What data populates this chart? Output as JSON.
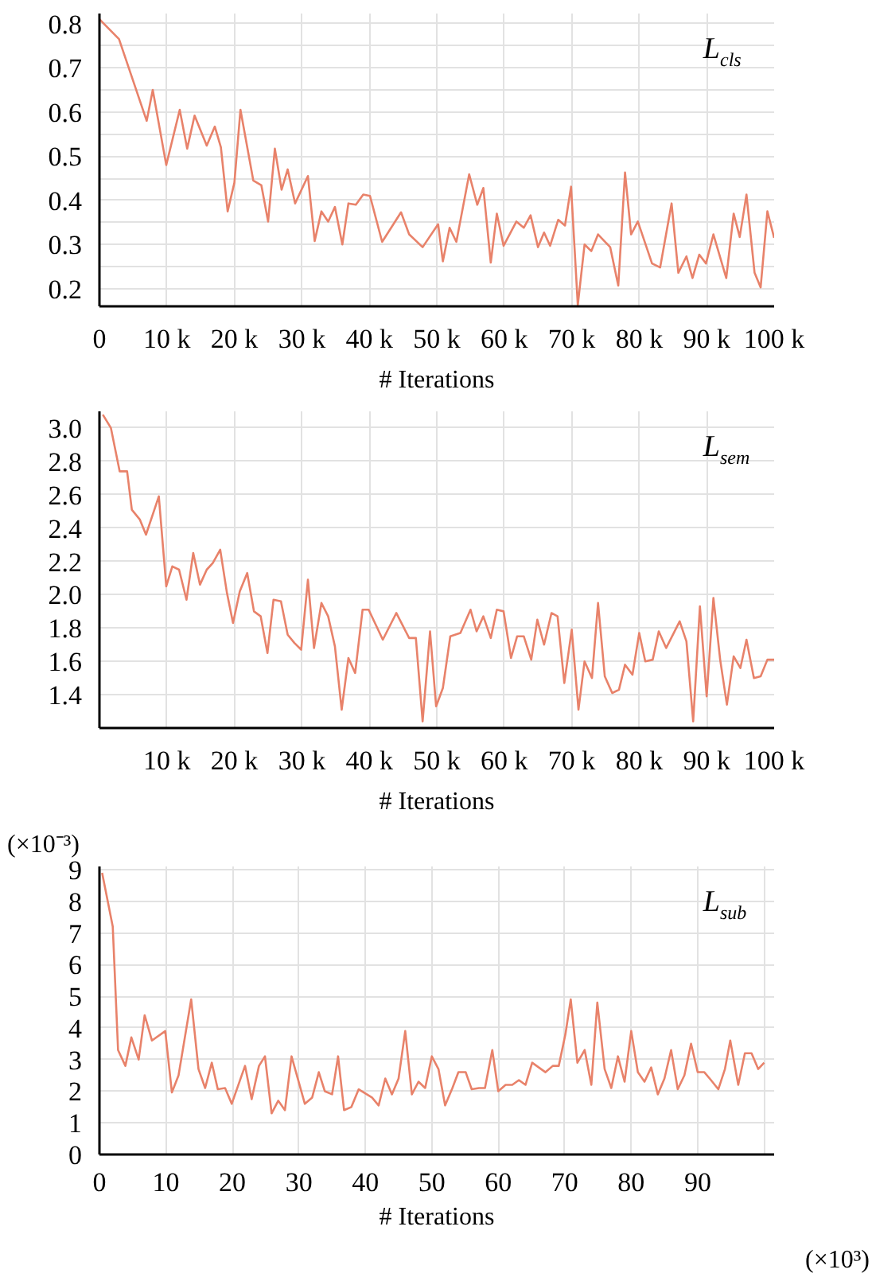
{
  "chart_data": [
    {
      "type": "line",
      "title": "L$_{cls}$",
      "xlabel": "# Iterations",
      "grid": true,
      "xlim": [
        0,
        100
      ],
      "ylim": [
        0.16,
        0.823
      ],
      "xticks": [
        0,
        {
          "value": 10,
          "label": "10 k"
        },
        {
          "value": 20,
          "label": "20 k"
        },
        {
          "value": 30,
          "label": "30 k"
        },
        {
          "value": 40,
          "label": "40 k"
        },
        {
          "value": 50,
          "label": "50 k"
        },
        {
          "value": 60,
          "label": "60 k"
        },
        {
          "value": 70,
          "label": "70 k"
        },
        {
          "value": 80,
          "label": "80 k"
        },
        {
          "value": 90,
          "label": "90 k"
        },
        {
          "value": 100,
          "label": "100 k"
        }
      ],
      "yticks": [
        0.2,
        {
          "value": 0.25,
          "label": null
        },
        0.3,
        {
          "value": 0.35,
          "label": null
        },
        0.4,
        {
          "value": 0.45,
          "label": null
        },
        0.5,
        {
          "value": 0.55,
          "label": null
        },
        0.6,
        {
          "value": 0.65,
          "label": null
        },
        0.7,
        {
          "value": 0.75,
          "label": null
        },
        0.8
      ],
      "series": [
        {
          "color": "#e8826a",
          "x": [
            0,
            2.9,
            7.0,
            7.9,
            9.9,
            11.9,
            13.0,
            14.1,
            15.9,
            17.1,
            18.0,
            19.0,
            20.0,
            20.9,
            22.8,
            24.0,
            25.0,
            26.0,
            27.0,
            27.9,
            29.0,
            30.9,
            31.9,
            32.9,
            33.9,
            34.9,
            36.0,
            36.9,
            38.0,
            39.1,
            40.1,
            41.9,
            44.7,
            45.9,
            47.9,
            50.2,
            50.9,
            51.9,
            52.9,
            54.8,
            56.0,
            56.9,
            58.0,
            58.9,
            59.9,
            61.8,
            62.9,
            63.9,
            65.0,
            65.9,
            66.8,
            68.0,
            69.0,
            69.9,
            70.9,
            71.9,
            72.9,
            73.9,
            75.7,
            76.9,
            77.9,
            78.8,
            79.8,
            81.9,
            83.1,
            84.8,
            85.8,
            87.0,
            87.9,
            88.9,
            89.9,
            91.0,
            92.9,
            94.0,
            94.9,
            95.9,
            97.1,
            98.0,
            99.0,
            100.0
          ],
          "values": [
            0.81,
            0.765,
            0.58,
            0.65,
            0.48,
            0.605,
            0.517,
            0.592,
            0.524,
            0.567,
            0.52,
            0.375,
            0.44,
            0.605,
            0.445,
            0.434,
            0.352,
            0.517,
            0.424,
            0.47,
            0.393,
            0.455,
            0.308,
            0.375,
            0.352,
            0.385,
            0.3,
            0.393,
            0.39,
            0.413,
            0.41,
            0.306,
            0.373,
            0.323,
            0.294,
            0.346,
            0.262,
            0.338,
            0.306,
            0.459,
            0.39,
            0.428,
            0.259,
            0.37,
            0.297,
            0.352,
            0.338,
            0.366,
            0.294,
            0.327,
            0.297,
            0.356,
            0.343,
            0.431,
            0.163,
            0.3,
            0.285,
            0.323,
            0.294,
            0.207,
            0.463,
            0.323,
            0.352,
            0.257,
            0.248,
            0.393,
            0.236,
            0.273,
            0.224,
            0.277,
            0.257,
            0.323,
            0.224,
            0.37,
            0.317,
            0.413,
            0.236,
            0.203,
            0.375,
            0.315
          ]
        }
      ]
    },
    {
      "type": "line",
      "title": "L$_{sem}$",
      "xlabel": "# Iterations",
      "grid": true,
      "xlim": [
        0,
        100
      ],
      "ylim": [
        1.2,
        3.1
      ],
      "xticks": [
        {
          "value": 10,
          "label": "10 k"
        },
        {
          "value": 20,
          "label": "20 k"
        },
        {
          "value": 30,
          "label": "30 k"
        },
        {
          "value": 40,
          "label": "40 k"
        },
        {
          "value": 50,
          "label": "50 k"
        },
        {
          "value": 60,
          "label": "60 k"
        },
        {
          "value": 70,
          "label": "70 k"
        },
        {
          "value": 80,
          "label": "80 k"
        },
        {
          "value": 90,
          "label": "90 k"
        },
        {
          "value": 100,
          "label": "100 k"
        }
      ],
      "yticks": [
        {
          "value": 1.4,
          "label": "1.4"
        },
        {
          "value": 1.6,
          "label": "1.6"
        },
        {
          "value": 1.8,
          "label": "1.8"
        },
        {
          "value": 2.0,
          "label": "2.0"
        },
        {
          "value": 2.2,
          "label": "2.2"
        },
        {
          "value": 2.4,
          "label": "2.4"
        },
        {
          "value": 2.6,
          "label": "2.6"
        },
        {
          "value": 2.8,
          "label": "2.8"
        },
        {
          "value": 3.0,
          "label": "3.0"
        }
      ],
      "series": [
        {
          "color": "#e8826a",
          "x": [
            0.5,
            1.7,
            3.0,
            4.1,
            4.8,
            6.0,
            6.9,
            8.8,
            9.9,
            10.8,
            11.8,
            12.9,
            13.9,
            14.9,
            15.9,
            16.8,
            17.9,
            18.9,
            19.8,
            20.8,
            21.9,
            22.9,
            23.9,
            24.9,
            25.8,
            26.9,
            27.9,
            28.9,
            29.9,
            30.9,
            31.8,
            32.9,
            33.9,
            34.9,
            35.9,
            36.9,
            37.9,
            39.0,
            39.9,
            42.0,
            44.0,
            45.9,
            46.9,
            47.9,
            49.0,
            49.9,
            50.9,
            52.0,
            53.5,
            55.0,
            55.9,
            56.9,
            58.0,
            58.9,
            59.9,
            61.0,
            61.9,
            62.9,
            64.0,
            64.9,
            65.9,
            67.0,
            67.9,
            68.9,
            70.0,
            71.0,
            71.9,
            73.0,
            73.9,
            74.9,
            76.0,
            77.0,
            77.9,
            79.0,
            80.0,
            80.9,
            82.0,
            82.9,
            84.0,
            86.0,
            87.0,
            88.0,
            89.0,
            90.0,
            91.0,
            92.0,
            93.0,
            94.0,
            95.0,
            95.9,
            97.0,
            98.0,
            99.0,
            100.0
          ],
          "values": [
            3.08,
            3.0,
            2.74,
            2.74,
            2.51,
            2.45,
            2.36,
            2.59,
            2.05,
            2.17,
            2.15,
            1.97,
            2.25,
            2.06,
            2.15,
            2.19,
            2.27,
            2.01,
            1.83,
            2.02,
            2.13,
            1.9,
            1.87,
            1.65,
            1.97,
            1.96,
            1.76,
            1.71,
            1.67,
            2.09,
            1.68,
            1.95,
            1.87,
            1.69,
            1.31,
            1.62,
            1.53,
            1.91,
            1.91,
            1.73,
            1.89,
            1.74,
            1.74,
            1.24,
            1.78,
            1.33,
            1.44,
            1.75,
            1.77,
            1.91,
            1.78,
            1.87,
            1.74,
            1.91,
            1.9,
            1.62,
            1.75,
            1.75,
            1.61,
            1.85,
            1.7,
            1.89,
            1.87,
            1.47,
            1.79,
            1.31,
            1.6,
            1.5,
            1.95,
            1.51,
            1.41,
            1.43,
            1.58,
            1.52,
            1.77,
            1.6,
            1.61,
            1.78,
            1.68,
            1.84,
            1.72,
            1.24,
            1.93,
            1.39,
            1.98,
            1.61,
            1.34,
            1.63,
            1.56,
            1.73,
            1.5,
            1.51,
            1.61,
            1.61
          ]
        }
      ]
    },
    {
      "type": "line",
      "title": "L$_{sub}$",
      "xlabel": "# Iterations",
      "ylabel": "(×10⁻³)",
      "annotations": [
        "(×10³)"
      ],
      "grid": true,
      "xlim": [
        0,
        101.5
      ],
      "ylim": [
        0,
        9.1
      ],
      "xticks": [
        0,
        10,
        20,
        30,
        40,
        50,
        60,
        70,
        80,
        90,
        {
          "value": 100,
          "label": null
        }
      ],
      "yticks": [
        0,
        1,
        2,
        3,
        4,
        5,
        6,
        7,
        8,
        9
      ],
      "series": [
        {
          "color": "#e8826a",
          "x": [
            0.4,
            2.0,
            2.8,
            3.9,
            4.8,
            5.9,
            6.8,
            7.9,
            9.9,
            10.9,
            11.9,
            13.8,
            14.9,
            15.9,
            16.9,
            17.8,
            18.9,
            19.9,
            21.9,
            22.9,
            24.0,
            24.9,
            25.9,
            26.9,
            27.9,
            28.9,
            30.9,
            32.0,
            33.0,
            33.9,
            35.0,
            35.9,
            36.8,
            37.9,
            39.0,
            41.0,
            42.0,
            43.0,
            44.0,
            45.0,
            46.0,
            47.0,
            48.0,
            49.0,
            50.0,
            51.0,
            52.0,
            53.1,
            54.0,
            55.1,
            56.0,
            57.1,
            58.0,
            59.1,
            60.0,
            61.1,
            62.1,
            63.1,
            64.1,
            65.1,
            66.1,
            67.1,
            68.2,
            69.1,
            70.1,
            70.9,
            71.9,
            73.0,
            74.0,
            74.9,
            76.0,
            77.0,
            78.0,
            79.0,
            80.0,
            81.0,
            82.0,
            83.0,
            84.0,
            85.0,
            86.0,
            87.0,
            88.0,
            89.0,
            90.0,
            91.0,
            92.0,
            93.1,
            94.1,
            94.9,
            96.1,
            97.1,
            98.1,
            99.1,
            100.0
          ],
          "values": [
            8.9,
            7.2,
            3.3,
            2.8,
            3.7,
            3.0,
            4.4,
            3.6,
            3.9,
            1.96,
            2.5,
            4.9,
            2.7,
            2.1,
            2.9,
            2.06,
            2.1,
            1.6,
            2.8,
            1.75,
            2.8,
            3.1,
            1.3,
            1.7,
            1.4,
            3.1,
            1.6,
            1.8,
            2.6,
            2.0,
            1.9,
            3.1,
            1.4,
            1.5,
            2.06,
            1.8,
            1.55,
            2.4,
            1.9,
            2.4,
            3.9,
            1.9,
            2.3,
            2.1,
            3.1,
            2.7,
            1.55,
            2.1,
            2.6,
            2.6,
            2.06,
            2.1,
            2.1,
            3.3,
            2.0,
            2.2,
            2.2,
            2.35,
            2.2,
            2.9,
            2.75,
            2.6,
            2.8,
            2.8,
            3.8,
            4.9,
            2.9,
            3.3,
            2.2,
            4.8,
            2.7,
            2.1,
            3.1,
            2.3,
            3.9,
            2.6,
            2.3,
            2.75,
            1.9,
            2.4,
            3.3,
            2.06,
            2.5,
            3.5,
            2.6,
            2.6,
            2.35,
            2.06,
            2.7,
            3.6,
            2.2,
            3.2,
            3.2,
            2.7,
            2.9
          ]
        }
      ]
    }
  ]
}
